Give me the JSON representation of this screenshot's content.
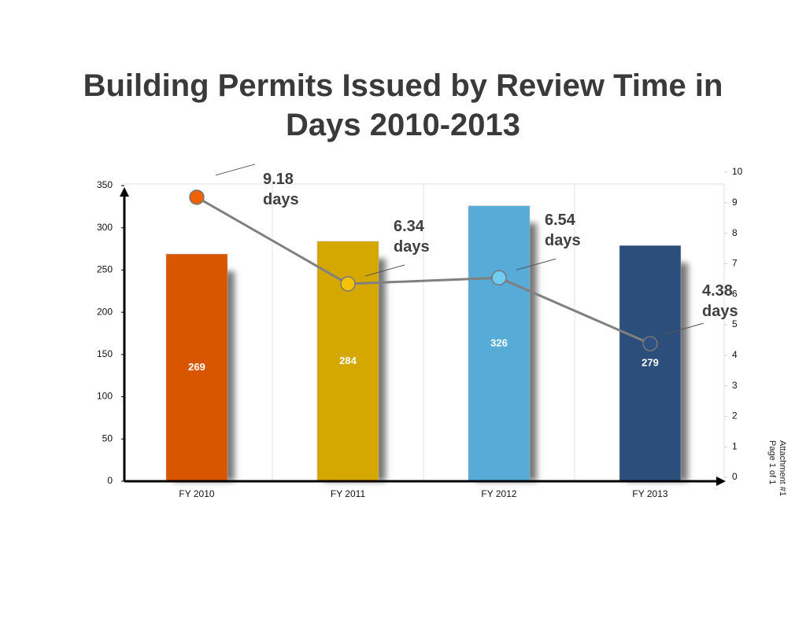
{
  "chart_data": {
    "type": "bar-line",
    "title": "Building Permits Issued by Review Time in Days 2010-2013",
    "categories": [
      "FY 2010",
      "FY 2011",
      "FY 2012",
      "FY 2013"
    ],
    "series": [
      {
        "type": "bar",
        "values": [
          269,
          284,
          326,
          279
        ],
        "colors": [
          "#d95600",
          "#d4a800",
          "#56abd7",
          "#2b4e7b"
        ]
      },
      {
        "type": "line",
        "axis": "y2",
        "color": "#808080",
        "values": [
          9.18,
          6.34,
          6.54,
          4.38
        ],
        "value_labels": [
          "9.18 days",
          "6.34 days",
          "6.54 days",
          "4.38 days"
        ],
        "colors": [
          "#f06200",
          "#f7c200",
          "#6fcdf2",
          "#2f5283"
        ]
      }
    ],
    "ylim": [
      0,
      350
    ],
    "yticks": [
      0,
      50,
      100,
      150,
      200,
      250,
      300,
      350
    ],
    "y2lim": [
      0,
      10
    ],
    "y2ticks": [
      0,
      1,
      2,
      3,
      4,
      5,
      6,
      7,
      8,
      9,
      10
    ]
  },
  "page_note": [
    "Attachment #1",
    "Page 1 of 1"
  ]
}
